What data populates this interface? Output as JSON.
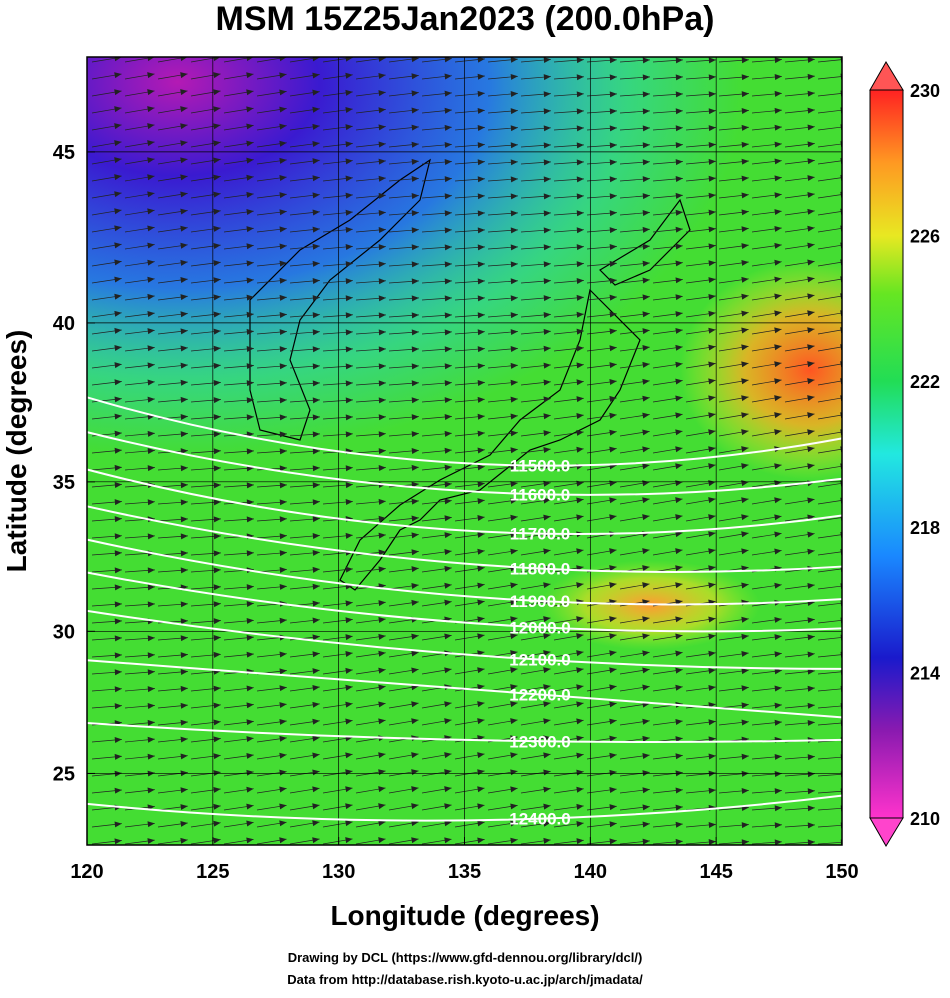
{
  "chart_data": {
    "type": "contour-map",
    "title": "MSM 15Z25Jan2023 (200.0hPa)",
    "x_label": "Longitude (degrees)",
    "y_label": "Latitude  (degrees)",
    "projection": "mercator",
    "xlim": [
      120,
      150
    ],
    "ylim": [
      22.4,
      47.6
    ],
    "xticks": [
      120,
      125,
      130,
      135,
      140,
      145,
      150
    ],
    "yticks": [
      25,
      30,
      35,
      40,
      45
    ],
    "grid": true,
    "colorbar": {
      "lim": [
        210,
        230
      ],
      "ticks": [
        210,
        214,
        218,
        222,
        226,
        230
      ]
    },
    "contours": [
      {
        "value": 11500,
        "label": "11500.0",
        "lon": [
          120,
          135,
          150
        ],
        "lat": [
          37.7,
          35.6,
          36.4
        ]
      },
      {
        "value": 11600,
        "label": "11600.0",
        "lon": [
          120,
          135,
          150
        ],
        "lat": [
          36.6,
          34.7,
          35.1
        ]
      },
      {
        "value": 11700,
        "label": "11700.0",
        "lon": [
          120,
          135,
          150
        ],
        "lat": [
          35.4,
          33.4,
          33.9
        ]
      },
      {
        "value": 11800,
        "label": "11800.0",
        "lon": [
          120,
          135,
          150
        ],
        "lat": [
          34.2,
          32.3,
          32.2
        ]
      },
      {
        "value": 11900,
        "label": "11900.0",
        "lon": [
          120,
          135,
          150
        ],
        "lat": [
          33.1,
          31.2,
          31.1
        ]
      },
      {
        "value": 12000,
        "label": "12000.0",
        "lon": [
          120,
          135,
          150
        ],
        "lat": [
          32.0,
          30.3,
          30.1
        ]
      },
      {
        "value": 12100,
        "label": "12100.0",
        "lon": [
          120,
          135,
          150
        ],
        "lat": [
          30.7,
          29.2,
          28.7
        ]
      },
      {
        "value": 12200,
        "label": "12200.0",
        "lon": [
          120,
          135,
          150
        ],
        "lat": [
          29.0,
          28.0,
          27.0
        ]
      },
      {
        "value": 12300,
        "label": "12300.0",
        "lon": [
          120,
          135,
          150
        ],
        "lat": [
          26.8,
          26.2,
          26.2
        ]
      },
      {
        "value": 12400,
        "label": "12400.0",
        "lon": [
          120,
          135,
          150
        ],
        "lat": [
          23.9,
          23.3,
          24.2
        ]
      }
    ],
    "footer": [
      "Drawing by DCL (https://www.gfd-dennou.org/library/dcl/)",
      "Data from http://database.rish.kyoto-u.ac.jp/arch/jmadata/"
    ]
  }
}
